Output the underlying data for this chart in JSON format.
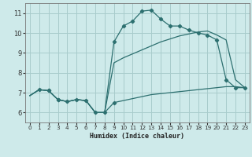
{
  "background_color": "#ceeaea",
  "grid_color": "#a8cccc",
  "line_color": "#2d7070",
  "xlabel": "Humidex (Indice chaleur)",
  "xlim": [
    -0.5,
    23.5
  ],
  "ylim": [
    5.5,
    11.5
  ],
  "xticks": [
    0,
    1,
    2,
    3,
    4,
    5,
    6,
    7,
    8,
    9,
    10,
    11,
    12,
    13,
    14,
    15,
    16,
    17,
    18,
    19,
    20,
    21,
    22,
    23
  ],
  "yticks": [
    6,
    7,
    8,
    9,
    10,
    11
  ],
  "curve_spike_x": [
    0,
    1,
    2,
    3,
    4,
    5,
    6,
    7,
    8,
    9,
    10,
    11,
    12,
    13,
    14,
    15,
    16,
    17,
    18,
    19,
    20,
    21,
    22,
    23
  ],
  "curve_spike_y": [
    6.85,
    7.15,
    7.1,
    6.65,
    6.55,
    6.65,
    6.6,
    6.0,
    6.0,
    9.55,
    10.35,
    10.6,
    11.1,
    11.15,
    10.7,
    10.35,
    10.35,
    10.15,
    10.0,
    9.9,
    9.65,
    7.65,
    7.25,
    7.25
  ],
  "curve_diag_x": [
    0,
    1,
    2,
    3,
    4,
    5,
    6,
    7,
    8,
    9,
    10,
    11,
    12,
    13,
    14,
    15,
    16,
    17,
    18,
    19,
    20,
    21,
    22,
    23
  ],
  "curve_diag_y": [
    6.85,
    7.15,
    7.1,
    6.65,
    6.55,
    6.65,
    6.6,
    6.0,
    6.0,
    8.5,
    8.75,
    8.95,
    9.15,
    9.35,
    9.55,
    9.7,
    9.85,
    9.95,
    10.05,
    10.1,
    9.9,
    9.65,
    7.65,
    7.25
  ],
  "curve_flat_x": [
    0,
    1,
    2,
    3,
    4,
    5,
    6,
    7,
    8,
    9,
    10,
    11,
    12,
    13,
    14,
    15,
    16,
    17,
    18,
    19,
    20,
    21,
    22,
    23
  ],
  "curve_flat_y": [
    6.85,
    7.15,
    7.1,
    6.65,
    6.55,
    6.65,
    6.6,
    6.0,
    6.0,
    6.5,
    6.6,
    6.7,
    6.8,
    6.9,
    6.95,
    7.0,
    7.05,
    7.1,
    7.15,
    7.2,
    7.25,
    7.3,
    7.3,
    7.25
  ],
  "markers_spike_x": [
    2,
    3,
    9,
    10,
    11,
    12,
    13,
    14,
    15,
    16,
    17,
    18,
    19,
    20,
    21,
    22,
    23
  ],
  "markers_spike_y": [
    7.1,
    6.65,
    9.55,
    10.35,
    10.6,
    11.1,
    11.15,
    10.7,
    10.35,
    10.35,
    10.15,
    10.0,
    9.9,
    9.65,
    7.65,
    7.25,
    7.25
  ],
  "markers_dip_x": [
    1,
    2,
    3,
    4,
    5,
    6,
    7,
    8,
    9
  ],
  "markers_dip_y": [
    7.15,
    7.1,
    6.65,
    6.55,
    6.65,
    6.6,
    6.0,
    6.0,
    6.5
  ]
}
